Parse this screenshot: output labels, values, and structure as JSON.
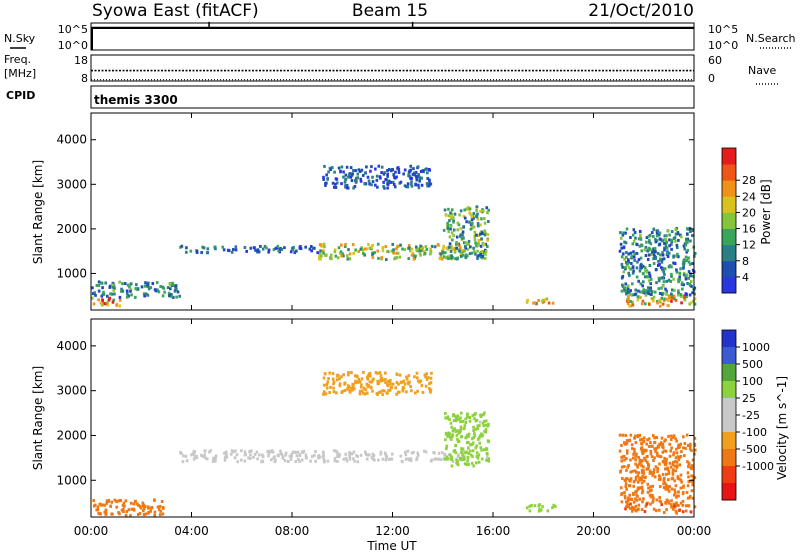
{
  "header": {
    "radar": "Syowa East (fitACF)",
    "beam": "Beam 15",
    "date": "21/Oct/2010"
  },
  "time_axis": {
    "ticks": [
      "00:00",
      "04:00",
      "08:00",
      "12:00",
      "16:00",
      "20:00",
      "00:00"
    ],
    "label": "Time UT"
  },
  "summary_panels": {
    "nsky": {
      "label": "N.Sky",
      "left_ticks": [
        "10^5",
        "10^0"
      ],
      "right_ticks": [
        "10^5",
        "10^0"
      ],
      "right_label": "N.Search",
      "level": 0.82,
      "spikes": [
        4.7,
        12.8
      ]
    },
    "freq": {
      "label_1": "Freq.",
      "label_2": "[MHz]",
      "left_ticks": [
        "18",
        "8"
      ],
      "right_ticks": [
        "60",
        "0"
      ],
      "right_label": "Nave",
      "freq_level": 0.4,
      "nave_level": 0.05
    },
    "cpid": {
      "label": "CPID",
      "value": "themis 3300"
    }
  },
  "chart_data": [
    {
      "type": "heatmap",
      "title": "",
      "xlabel": "Time UT",
      "ylabel": "Slant Range [km]",
      "xlim": [
        0,
        24
      ],
      "ylim": [
        180,
        4600
      ],
      "y_ticks": [
        "1000",
        "2000",
        "3000",
        "4000"
      ],
      "colorbar": {
        "label": "Power [dB]",
        "ticks": [
          "4",
          "8",
          "12",
          "16",
          "20",
          "24",
          "28"
        ],
        "colors": [
          "#2a36e0",
          "#1c4fb0",
          "#2a7f86",
          "#3aa55a",
          "#86c43a",
          "#d9c21d",
          "#f0911a",
          "#f05518",
          "#e61b1b"
        ]
      },
      "regions": [
        {
          "t": [
            0,
            1.2
          ],
          "r": [
            250,
            450
          ],
          "value": 24
        },
        {
          "t": [
            0,
            3.5
          ],
          "r": [
            450,
            800
          ],
          "value": 10
        },
        {
          "t": [
            3.5,
            9
          ],
          "r": [
            1450,
            1600
          ],
          "value": 8
        },
        {
          "t": [
            9,
            14.8
          ],
          "r": [
            1300,
            1650
          ],
          "value": 18
        },
        {
          "t": [
            9.2,
            13.5
          ],
          "r": [
            2900,
            3400
          ],
          "value": 6
        },
        {
          "t": [
            14,
            15.8
          ],
          "r": [
            1300,
            2500
          ],
          "value": 14
        },
        {
          "t": [
            17.3,
            18.5
          ],
          "r": [
            300,
            450
          ],
          "value": 20
        },
        {
          "t": [
            21.2,
            24
          ],
          "r": [
            250,
            500
          ],
          "value": 22
        },
        {
          "t": [
            21,
            24
          ],
          "r": [
            500,
            2000
          ],
          "value": 10
        }
      ]
    },
    {
      "type": "heatmap",
      "title": "",
      "xlabel": "Time UT",
      "ylabel": "Slant Range [km]",
      "xlim": [
        0,
        24
      ],
      "ylim": [
        180,
        4600
      ],
      "y_ticks": [
        "1000",
        "2000",
        "3000",
        "4000"
      ],
      "colorbar": {
        "label": "Velocity [m s^-1]",
        "ticks": [
          "1000",
          "500",
          "100",
          "25",
          "-25",
          "-100",
          "-500",
          "-1000"
        ],
        "colors": [
          "#2332c8",
          "#3c5ad2",
          "#54a63a",
          "#8cd23c",
          "#c8c8c8",
          "#c8c8c8",
          "#f0a01e",
          "#f07814",
          "#f03c14",
          "#e61414"
        ]
      },
      "regions": [
        {
          "t": [
            0,
            3
          ],
          "r": [
            200,
            550
          ],
          "value": -300
        },
        {
          "t": [
            3.5,
            14.8
          ],
          "r": [
            1400,
            1650
          ],
          "value": 0
        },
        {
          "t": [
            9.2,
            13.5
          ],
          "r": [
            2900,
            3400
          ],
          "value": -60
        },
        {
          "t": [
            14,
            15.8
          ],
          "r": [
            1300,
            2500
          ],
          "value": 40
        },
        {
          "t": [
            17.3,
            18.5
          ],
          "r": [
            300,
            450
          ],
          "value": 60
        },
        {
          "t": [
            21.2,
            24
          ],
          "r": [
            250,
            500
          ],
          "value": -400
        },
        {
          "t": [
            21,
            24
          ],
          "r": [
            500,
            2000
          ],
          "value": -150
        }
      ]
    }
  ]
}
